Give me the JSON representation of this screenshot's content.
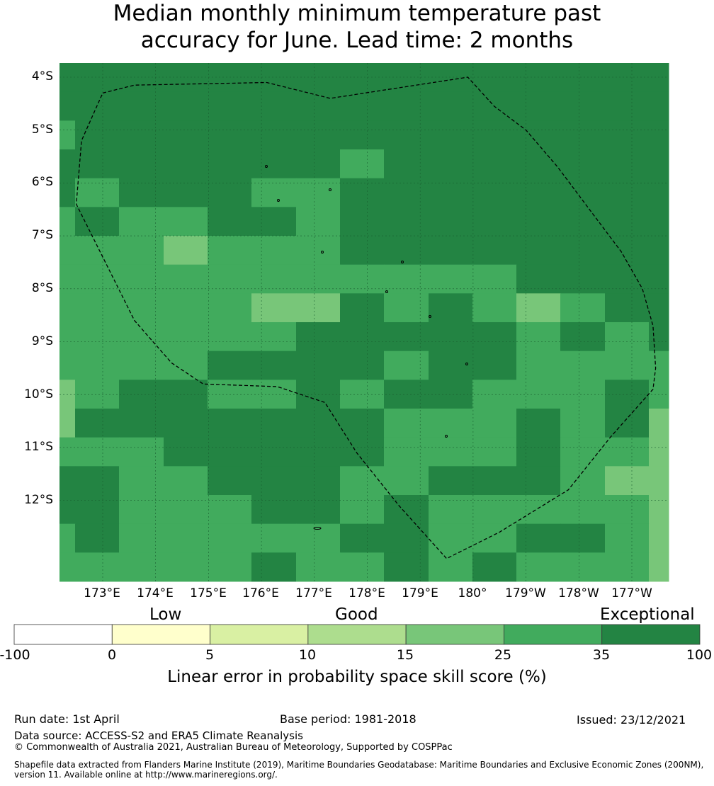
{
  "title": {
    "line1": "Median monthly minimum temperature past",
    "line2": "accuracy for June. Lead time: 2 months"
  },
  "map": {
    "lat_labels": [
      "4°S",
      "5°S",
      "6°S",
      "7°S",
      "8°S",
      "9°S",
      "10°S",
      "11°S",
      "12°S"
    ],
    "lon_labels": [
      "173°E",
      "174°E",
      "175°E",
      "176°E",
      "177°E",
      "178°E",
      "179°E",
      "180°",
      "179°W",
      "178°W",
      "177°W"
    ],
    "skill_grid_columns": [
      "172.5",
      "173",
      "174",
      "175",
      "176",
      "177",
      "178",
      "179",
      "180",
      "181",
      "182",
      "183",
      "184",
      "185",
      "185.5"
    ],
    "skill_grid": [
      [
        6,
        6,
        6,
        6,
        6,
        6,
        6,
        6,
        6,
        6,
        6,
        6,
        6,
        6,
        6
      ],
      [
        6,
        6,
        6,
        6,
        6,
        6,
        6,
        6,
        6,
        6,
        6,
        6,
        6,
        6,
        6
      ],
      [
        5,
        6,
        6,
        6,
        6,
        6,
        6,
        6,
        6,
        6,
        6,
        6,
        6,
        6,
        6
      ],
      [
        6,
        6,
        6,
        6,
        6,
        6,
        6,
        5,
        6,
        6,
        6,
        6,
        6,
        6,
        6
      ],
      [
        6,
        5,
        6,
        6,
        6,
        5,
        5,
        6,
        6,
        6,
        6,
        6,
        6,
        6,
        6
      ],
      [
        5,
        6,
        5,
        5,
        6,
        6,
        5,
        6,
        6,
        6,
        6,
        6,
        6,
        6,
        6
      ],
      [
        5,
        5,
        5,
        4,
        5,
        5,
        5,
        6,
        6,
        6,
        6,
        6,
        6,
        6,
        6
      ],
      [
        5,
        5,
        5,
        5,
        5,
        5,
        5,
        5,
        5,
        5,
        5,
        6,
        6,
        6,
        6
      ],
      [
        5,
        5,
        5,
        5,
        5,
        4,
        4,
        6,
        5,
        6,
        5,
        4,
        5,
        6,
        6
      ],
      [
        5,
        5,
        5,
        5,
        5,
        5,
        6,
        6,
        6,
        6,
        6,
        5,
        6,
        5,
        6
      ],
      [
        5,
        5,
        5,
        5,
        6,
        6,
        6,
        6,
        5,
        6,
        6,
        5,
        5,
        5,
        5
      ],
      [
        4,
        5,
        6,
        6,
        5,
        5,
        6,
        5,
        6,
        6,
        5,
        5,
        5,
        6,
        5
      ],
      [
        4,
        6,
        6,
        6,
        6,
        6,
        6,
        6,
        5,
        5,
        5,
        6,
        5,
        6,
        4
      ],
      [
        5,
        5,
        5,
        6,
        6,
        6,
        6,
        6,
        5,
        5,
        5,
        6,
        5,
        5,
        4
      ],
      [
        6,
        6,
        5,
        5,
        6,
        6,
        6,
        5,
        5,
        6,
        6,
        6,
        5,
        4,
        4
      ],
      [
        6,
        6,
        5,
        5,
        5,
        6,
        6,
        5,
        6,
        5,
        5,
        5,
        5,
        5,
        4
      ],
      [
        5,
        6,
        5,
        5,
        5,
        5,
        5,
        6,
        6,
        5,
        5,
        6,
        6,
        5,
        4
      ],
      [
        5,
        5,
        5,
        5,
        5,
        6,
        5,
        5,
        6,
        5,
        6,
        5,
        5,
        5,
        4
      ]
    ],
    "eez_boundary_lonlat": [
      [
        173.0,
        -4.3
      ],
      [
        173.6,
        -4.15
      ],
      [
        176.1,
        -4.1
      ],
      [
        177.3,
        -4.4
      ],
      [
        179.9,
        -4.0
      ],
      [
        180.4,
        -4.55
      ],
      [
        181.0,
        -5.0
      ],
      [
        181.6,
        -5.7
      ],
      [
        182.2,
        -6.5
      ],
      [
        182.8,
        -7.3
      ],
      [
        183.2,
        -8.0
      ],
      [
        183.4,
        -8.7
      ],
      [
        183.45,
        -9.5
      ],
      [
        183.4,
        -9.9
      ],
      [
        182.6,
        -10.8
      ],
      [
        181.8,
        -11.8
      ],
      [
        180.5,
        -12.6
      ],
      [
        179.5,
        -13.1
      ],
      [
        178.6,
        -12.1
      ],
      [
        177.8,
        -11.1
      ],
      [
        177.2,
        -10.15
      ],
      [
        176.3,
        -9.85
      ],
      [
        174.9,
        -9.8
      ],
      [
        174.3,
        -9.4
      ],
      [
        173.6,
        -8.6
      ],
      [
        173.1,
        -7.6
      ],
      [
        172.5,
        -6.4
      ],
      [
        172.6,
        -5.2
      ]
    ]
  },
  "colorbar": {
    "categories": [
      "Low",
      "Good",
      "Exceptional"
    ],
    "ticks": [
      "-100",
      "0",
      "5",
      "10",
      "15",
      "25",
      "35",
      "100"
    ],
    "colors": [
      "#ffffff",
      "#ffffcc",
      "#d9f0a3",
      "#addd8e",
      "#78c679",
      "#41ab5d",
      "#238443"
    ],
    "label": "Linear error in probability space skill score (%)"
  },
  "footer": {
    "run_date": "Run date: 1st April",
    "base_period": "Base period: 1981-2018",
    "issued": "Issued: 23/12/2021",
    "data_source": "Data source: ACCESS-S2 and ERA5 Climate Reanalysis",
    "copyright": "© Commonwealth of Australia 2021, Australian Bureau of Meteorology, Supported by COSPPac",
    "shapefile": "Shapefile data extracted from Flanders Marine Institute (2019), Maritime Boundaries Geodatabase: Maritime Boundaries and Exclusive Economic Zones (200NM), version 11. Available online at http://www.marineregions.org/."
  }
}
